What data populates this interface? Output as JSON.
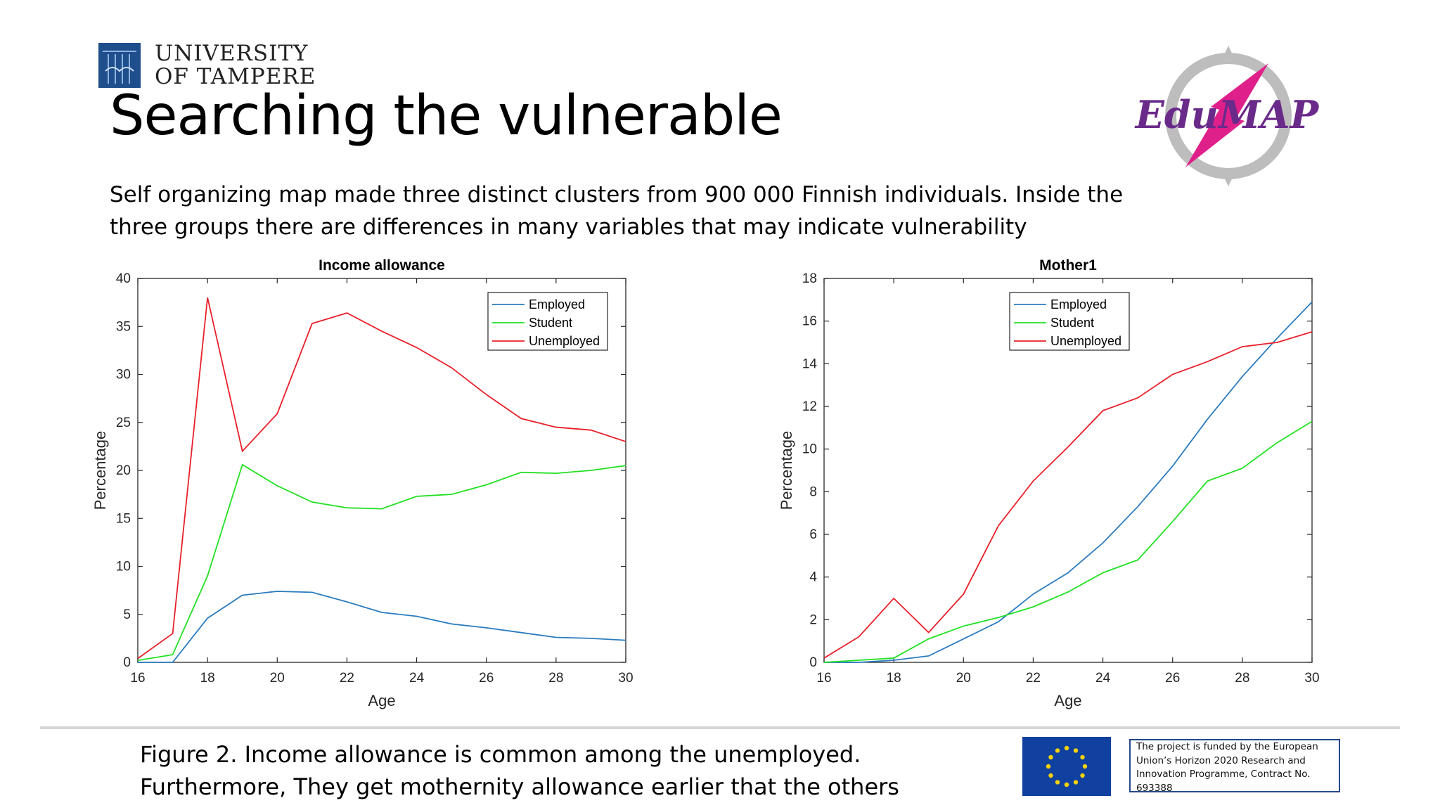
{
  "header": {
    "university_line1": "UNIVERSITY",
    "university_line2": "OF TAMPERE",
    "title": "Searching the vulnerable",
    "subtitle_line1": "Self organizing map made three distinct clusters from 900 000 Finnish individuals. Inside the",
    "subtitle_line2": "three groups there are differences in many variables that may indicate vulnerability",
    "logo_text": "EduMAP"
  },
  "footer": {
    "caption_line1": "Figure 2. Income allowance is common among the unemployed.",
    "caption_line2": "Furthermore, They get mothernity allowance earlier that the others",
    "funding_line1": "The project is funded by the European",
    "funding_line2": "Union’s Horizon 2020 Research and",
    "funding_line3": "Innovation Programme, Contract No.",
    "funding_line4": "693388"
  },
  "colors": {
    "Employed": "#2a7bbf",
    "Student": "#22e022",
    "Unemployed": "#e8202a",
    "logo_purple": "#6a2a8a",
    "logo_pink": "#e0208a"
  },
  "chart_data": [
    {
      "type": "line",
      "title": "Income allowance",
      "xlabel": "Age",
      "ylabel": "Percentage",
      "xlim": [
        16,
        30
      ],
      "ylim": [
        0,
        40
      ],
      "xticks": [
        16,
        18,
        20,
        22,
        24,
        26,
        28,
        30
      ],
      "yticks": [
        0,
        5,
        10,
        15,
        20,
        25,
        30,
        35,
        40
      ],
      "legend_position": "top-right",
      "x": [
        16,
        17,
        18,
        19,
        20,
        21,
        22,
        23,
        24,
        25,
        26,
        27,
        28,
        29,
        30
      ],
      "series": [
        {
          "name": "Employed",
          "values": [
            0,
            0,
            4.6,
            7.0,
            7.4,
            7.3,
            6.3,
            5.2,
            4.8,
            4.0,
            3.6,
            3.1,
            2.6,
            2.5,
            2.3
          ]
        },
        {
          "name": "Student",
          "values": [
            0.2,
            0.8,
            9.0,
            20.6,
            18.4,
            16.7,
            16.1,
            16.0,
            17.3,
            17.5,
            18.5,
            19.8,
            19.7,
            20.0,
            20.5
          ]
        },
        {
          "name": "Unemployed",
          "values": [
            0.4,
            3.0,
            38.0,
            22.0,
            25.9,
            35.3,
            36.4,
            34.5,
            32.8,
            30.7,
            27.9,
            25.4,
            24.5,
            24.2,
            23.0
          ]
        }
      ]
    },
    {
      "type": "line",
      "title": "Mother1",
      "xlabel": "Age",
      "ylabel": "Percentage",
      "xlim": [
        16,
        30
      ],
      "ylim": [
        0,
        18
      ],
      "xticks": [
        16,
        18,
        20,
        22,
        24,
        26,
        28,
        30
      ],
      "yticks": [
        0,
        2,
        4,
        6,
        8,
        10,
        12,
        14,
        16,
        18
      ],
      "legend_position": "top-left",
      "x": [
        16,
        17,
        18,
        19,
        20,
        21,
        22,
        23,
        24,
        25,
        26,
        27,
        28,
        29,
        30
      ],
      "series": [
        {
          "name": "Employed",
          "values": [
            0,
            0,
            0.1,
            0.3,
            1.1,
            1.9,
            3.2,
            4.2,
            5.6,
            7.3,
            9.2,
            11.4,
            13.4,
            15.2,
            16.9
          ]
        },
        {
          "name": "Student",
          "values": [
            0,
            0.1,
            0.2,
            1.1,
            1.7,
            2.1,
            2.6,
            3.3,
            4.2,
            4.8,
            6.6,
            8.5,
            9.1,
            10.3,
            11.3
          ]
        },
        {
          "name": "Unemployed",
          "values": [
            0.2,
            1.2,
            3.0,
            1.4,
            3.2,
            6.4,
            8.5,
            10.1,
            11.8,
            12.4,
            13.5,
            14.1,
            14.8,
            15.0,
            15.5
          ]
        }
      ]
    }
  ]
}
